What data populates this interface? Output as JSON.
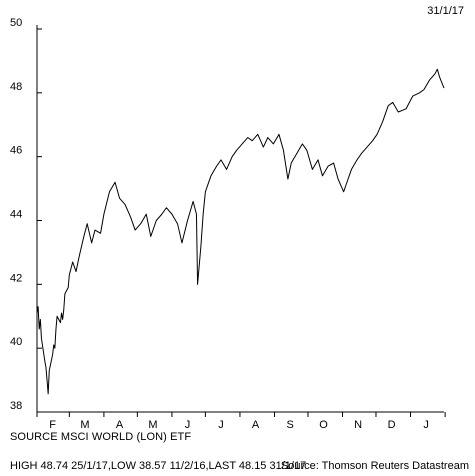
{
  "date_label": "31/1/17",
  "source_label": "SOURCE MSCI WORLD (LON) ETF",
  "stats_line": "HIGH 48.74 25/1/17,LOW 38.57 11/2/16,LAST 48.15 31/1/17",
  "credit": "Source: Thomson Reuters Datastream",
  "chart_data": {
    "type": "line",
    "title": "",
    "xlabel": "",
    "ylabel": "",
    "ylim": [
      38,
      50
    ],
    "xlim": [
      "2016-02-01",
      "2017-01-31"
    ],
    "yticks": [
      38,
      40,
      42,
      44,
      46,
      48,
      50
    ],
    "xticks": [
      {
        "label": "F",
        "date": "2016-02-15"
      },
      {
        "label": "M",
        "date": "2016-03-15"
      },
      {
        "label": "A",
        "date": "2016-04-15"
      },
      {
        "label": "M",
        "date": "2016-05-15"
      },
      {
        "label": "J",
        "date": "2016-06-15"
      },
      {
        "label": "J",
        "date": "2016-07-15"
      },
      {
        "label": "A",
        "date": "2016-08-15"
      },
      {
        "label": "S",
        "date": "2016-09-15"
      },
      {
        "label": "O",
        "date": "2016-10-15"
      },
      {
        "label": "N",
        "date": "2016-11-15"
      },
      {
        "label": "D",
        "date": "2016-12-15"
      },
      {
        "label": "J",
        "date": "2017-01-15"
      }
    ],
    "grid": false,
    "line_color": "#000000",
    "series": [
      {
        "x": [
          "2016-02-01",
          "2016-02-02",
          "2016-02-03",
          "2016-02-04",
          "2016-02-05",
          "2016-02-08",
          "2016-02-09",
          "2016-02-10",
          "2016-02-11",
          "2016-02-12",
          "2016-02-15",
          "2016-02-16",
          "2016-02-17",
          "2016-02-18",
          "2016-02-19",
          "2016-02-22",
          "2016-02-23",
          "2016-02-24",
          "2016-02-25",
          "2016-02-26",
          "2016-02-29",
          "2016-03-01",
          "2016-03-04",
          "2016-03-07",
          "2016-03-10",
          "2016-03-14",
          "2016-03-17",
          "2016-03-21",
          "2016-03-24",
          "2016-03-29",
          "2016-04-01",
          "2016-04-06",
          "2016-04-11",
          "2016-04-15",
          "2016-04-20",
          "2016-04-25",
          "2016-04-29",
          "2016-05-04",
          "2016-05-09",
          "2016-05-13",
          "2016-05-18",
          "2016-05-23",
          "2016-05-27",
          "2016-06-01",
          "2016-06-06",
          "2016-06-10",
          "2016-06-15",
          "2016-06-20",
          "2016-06-23",
          "2016-06-24",
          "2016-06-27",
          "2016-06-29",
          "2016-07-01",
          "2016-07-06",
          "2016-07-11",
          "2016-07-15",
          "2016-07-20",
          "2016-07-25",
          "2016-07-29",
          "2016-08-03",
          "2016-08-08",
          "2016-08-12",
          "2016-08-17",
          "2016-08-22",
          "2016-08-26",
          "2016-08-31",
          "2016-09-05",
          "2016-09-09",
          "2016-09-13",
          "2016-09-16",
          "2016-09-21",
          "2016-09-26",
          "2016-09-30",
          "2016-10-05",
          "2016-10-10",
          "2016-10-14",
          "2016-10-19",
          "2016-10-24",
          "2016-10-28",
          "2016-11-02",
          "2016-11-04",
          "2016-11-09",
          "2016-11-14",
          "2016-11-18",
          "2016-11-23",
          "2016-11-28",
          "2016-12-02",
          "2016-12-07",
          "2016-12-12",
          "2016-12-16",
          "2016-12-21",
          "2016-12-28",
          "2017-01-03",
          "2017-01-09",
          "2017-01-13",
          "2017-01-18",
          "2017-01-23",
          "2017-01-25",
          "2017-01-27",
          "2017-01-31"
        ],
        "y": [
          41.1,
          41.3,
          40.6,
          40.9,
          40.3,
          39.6,
          39.4,
          39.0,
          38.57,
          39.3,
          39.8,
          40.1,
          40.0,
          40.6,
          41.0,
          40.8,
          41.1,
          40.9,
          41.2,
          41.7,
          41.9,
          42.3,
          42.7,
          42.4,
          42.9,
          43.5,
          43.9,
          43.3,
          43.7,
          43.6,
          44.2,
          44.9,
          45.2,
          44.7,
          44.5,
          44.1,
          43.7,
          43.9,
          44.2,
          43.5,
          44.0,
          44.2,
          44.4,
          44.2,
          43.9,
          43.3,
          44.0,
          44.6,
          44.2,
          42.0,
          43.2,
          44.2,
          44.9,
          45.4,
          45.7,
          45.9,
          45.6,
          46.0,
          46.2,
          46.4,
          46.6,
          46.5,
          46.7,
          46.3,
          46.6,
          46.4,
          46.7,
          46.2,
          45.3,
          45.8,
          46.1,
          46.4,
          46.2,
          45.6,
          45.9,
          45.4,
          45.7,
          45.8,
          45.3,
          44.9,
          45.1,
          45.6,
          45.9,
          46.1,
          46.3,
          46.5,
          46.7,
          47.1,
          47.6,
          47.7,
          47.4,
          47.5,
          47.9,
          48.0,
          48.1,
          48.4,
          48.6,
          48.74,
          48.5,
          48.15
        ]
      }
    ]
  }
}
